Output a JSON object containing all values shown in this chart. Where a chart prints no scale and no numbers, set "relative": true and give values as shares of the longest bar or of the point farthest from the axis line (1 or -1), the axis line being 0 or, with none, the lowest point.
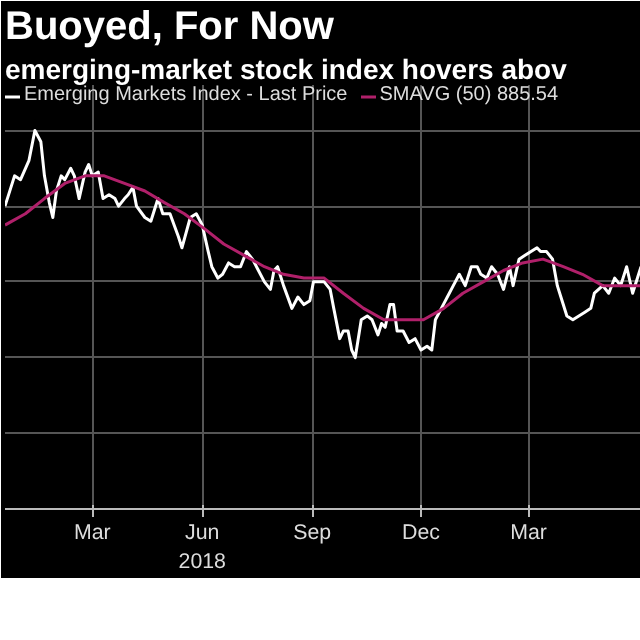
{
  "chart_data": {
    "type": "line",
    "title": "Buoyed, For Now",
    "subtitle": "emerging-market stock index hovers abov",
    "relative": true,
    "grid": true,
    "legend": "top left",
    "line_style": "solid",
    "marker": "none",
    "xlim": [
      "2018-01-01",
      "2019-06-17"
    ],
    "xticks": [
      {
        "value": "2018-03-15",
        "label": "Mar"
      },
      {
        "value": "2018-06-15",
        "label": "Jun\n2018"
      },
      {
        "value": "2018-09-15",
        "label": "Sep"
      },
      {
        "value": "2018-12-15",
        "label": "Dec"
      },
      {
        "value": "2019-03-15",
        "label": "Mar"
      }
    ],
    "series": [
      {
        "name": "Emerging Markets Index - Last Price",
        "color": "#ffffff",
        "x": [
          "2018-01-01",
          "2018-01-09",
          "2018-01-14",
          "2018-01-21",
          "2018-01-26",
          "2018-01-31",
          "2018-02-03",
          "2018-02-07",
          "2018-02-10",
          "2018-02-13",
          "2018-02-17",
          "2018-02-20",
          "2018-02-25",
          "2018-02-28",
          "2018-03-04",
          "2018-03-09",
          "2018-03-12",
          "2018-03-15",
          "2018-03-20",
          "2018-03-24",
          "2018-03-29",
          "2018-04-03",
          "2018-04-06",
          "2018-04-11",
          "2018-04-14",
          "2018-04-18",
          "2018-04-21",
          "2018-04-28",
          "2018-05-03",
          "2018-05-09",
          "2018-05-13",
          "2018-05-19",
          "2018-05-26",
          "2018-05-29",
          "2018-06-05",
          "2018-06-10",
          "2018-06-15",
          "2018-06-20",
          "2018-06-23",
          "2018-06-28",
          "2018-07-02",
          "2018-07-07",
          "2018-07-12",
          "2018-07-17",
          "2018-07-22",
          "2018-07-27",
          "2018-08-01",
          "2018-08-06",
          "2018-08-11",
          "2018-08-14",
          "2018-08-17",
          "2018-08-22",
          "2018-08-29",
          "2018-09-03",
          "2018-09-08",
          "2018-09-13",
          "2018-09-16",
          "2018-09-21",
          "2018-09-25",
          "2018-09-30",
          "2018-10-03",
          "2018-10-08",
          "2018-10-11",
          "2018-10-15",
          "2018-10-18",
          "2018-10-21",
          "2018-10-26",
          "2018-10-31",
          "2018-11-04",
          "2018-11-09",
          "2018-11-12",
          "2018-11-15",
          "2018-11-19",
          "2018-11-22",
          "2018-11-25",
          "2018-11-30",
          "2018-12-05",
          "2018-12-10",
          "2018-12-15",
          "2018-12-20",
          "2018-12-24",
          "2018-12-27",
          "2019-01-01",
          "2019-01-06",
          "2019-01-11",
          "2019-01-16",
          "2019-01-21",
          "2019-01-26",
          "2019-01-31",
          "2019-02-03",
          "2019-02-08",
          "2019-02-12",
          "2019-02-17",
          "2019-02-22",
          "2019-02-27",
          "2019-03-02",
          "2019-03-07",
          "2019-03-12",
          "2019-03-17",
          "2019-03-22",
          "2019-03-25",
          "2019-03-30",
          "2019-04-04",
          "2019-04-08",
          "2019-04-11",
          "2019-04-16",
          "2019-04-21",
          "2019-04-26",
          "2019-05-01",
          "2019-05-06",
          "2019-05-09",
          "2019-05-16",
          "2019-05-21",
          "2019-05-26",
          "2019-05-31",
          "2019-06-05",
          "2019-06-10",
          "2019-06-17"
        ],
        "values": [
          0.8,
          0.88,
          0.87,
          0.92,
          1.0,
          0.97,
          0.88,
          0.81,
          0.77,
          0.84,
          0.88,
          0.87,
          0.9,
          0.88,
          0.82,
          0.89,
          0.91,
          0.88,
          0.89,
          0.82,
          0.83,
          0.82,
          0.8,
          0.82,
          0.83,
          0.85,
          0.8,
          0.77,
          0.76,
          0.82,
          0.78,
          0.78,
          0.72,
          0.69,
          0.77,
          0.78,
          0.75,
          0.68,
          0.64,
          0.61,
          0.62,
          0.65,
          0.64,
          0.64,
          0.68,
          0.66,
          0.63,
          0.6,
          0.58,
          0.63,
          0.64,
          0.59,
          0.53,
          0.56,
          0.54,
          0.55,
          0.6,
          0.6,
          0.6,
          0.58,
          0.53,
          0.45,
          0.47,
          0.47,
          0.42,
          0.4,
          0.5,
          0.51,
          0.5,
          0.46,
          0.49,
          0.48,
          0.54,
          0.54,
          0.47,
          0.47,
          0.44,
          0.45,
          0.42,
          0.43,
          0.42,
          0.5,
          0.53,
          0.56,
          0.59,
          0.62,
          0.59,
          0.64,
          0.64,
          0.62,
          0.61,
          0.64,
          0.62,
          0.58,
          0.64,
          0.59,
          0.66,
          0.67,
          0.68,
          0.69,
          0.68,
          0.68,
          0.66,
          0.59,
          0.56,
          0.51,
          0.5,
          0.51,
          0.52,
          0.53,
          0.57,
          0.59,
          0.57,
          0.61,
          0.59,
          0.64,
          0.57,
          0.64
        ]
      },
      {
        "name": "SMAVG (50) 885.54",
        "color": "#b0206a",
        "x": [
          "2018-01-01",
          "2018-01-18",
          "2018-02-03",
          "2018-02-20",
          "2018-03-09",
          "2018-03-25",
          "2018-04-11",
          "2018-04-28",
          "2018-05-14",
          "2018-05-31",
          "2018-06-17",
          "2018-07-03",
          "2018-07-20",
          "2018-08-06",
          "2018-08-22",
          "2018-09-08",
          "2018-09-25",
          "2018-10-11",
          "2018-10-28",
          "2018-11-14",
          "2018-11-30",
          "2018-12-17",
          "2019-01-03",
          "2019-01-19",
          "2019-02-05",
          "2019-02-22",
          "2019-03-10",
          "2019-03-27",
          "2019-04-13",
          "2019-04-29",
          "2019-05-16",
          "2019-06-02",
          "2019-06-17"
        ],
        "values": [
          0.75,
          0.78,
          0.82,
          0.86,
          0.88,
          0.88,
          0.86,
          0.84,
          0.81,
          0.78,
          0.74,
          0.7,
          0.67,
          0.64,
          0.62,
          0.61,
          0.61,
          0.57,
          0.53,
          0.5,
          0.5,
          0.5,
          0.53,
          0.57,
          0.6,
          0.63,
          0.65,
          0.66,
          0.64,
          0.62,
          0.59,
          0.59,
          0.59
        ]
      }
    ]
  }
}
